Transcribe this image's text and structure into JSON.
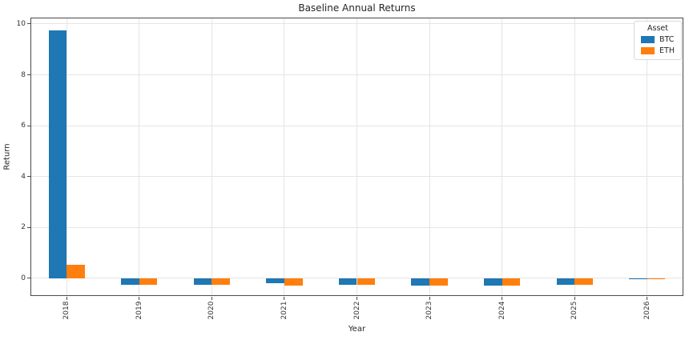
{
  "figure": {
    "title": "Baseline Annual Returns",
    "xlabel": "Year",
    "ylabel": "Return"
  },
  "legend": {
    "title": "Asset",
    "entries": [
      {
        "label": "BTC",
        "color": "#1f77b4"
      },
      {
        "label": "ETH",
        "color": "#ff7f0e"
      }
    ]
  },
  "chart_data": {
    "type": "bar",
    "title": "Baseline Annual Returns",
    "xlabel": "Year",
    "ylabel": "Return",
    "categories": [
      "2018",
      "2019",
      "2020",
      "2021",
      "2022",
      "2023",
      "2024",
      "2025",
      "2026"
    ],
    "series": [
      {
        "name": "BTC",
        "color": "#1f77b4",
        "values": [
          9.75,
          -0.25,
          -0.27,
          -0.2,
          -0.27,
          -0.3,
          -0.29,
          -0.25,
          -0.04
        ]
      },
      {
        "name": "ETH",
        "color": "#ff7f0e",
        "values": [
          0.52,
          -0.25,
          -0.27,
          -0.3,
          -0.27,
          -0.3,
          -0.29,
          -0.25,
          -0.03
        ]
      }
    ],
    "ylim": [
      -0.7,
      10.25
    ],
    "yticks": [
      0,
      2,
      4,
      6,
      8,
      10
    ],
    "grid": true,
    "legend_position": "upper right",
    "bar_group_width": 0.5
  }
}
